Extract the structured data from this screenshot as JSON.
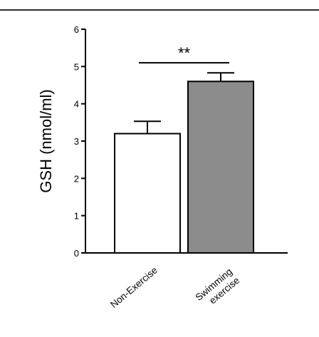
{
  "chart_data": {
    "type": "bar",
    "title": "",
    "xlabel": "",
    "ylabel": "GSH (nmol/ml)",
    "ylim": [
      0,
      6
    ],
    "yticks": [
      0,
      1,
      2,
      3,
      4,
      5,
      6
    ],
    "grid": false,
    "categories": [
      {
        "lines": [
          "Non-Exercise"
        ]
      },
      {
        "lines": [
          "Swimming",
          "exercise"
        ]
      }
    ],
    "values": [
      3.2,
      4.6
    ],
    "errors": [
      0.33,
      0.23
    ],
    "colors": [
      "#ffffff",
      "#8c8c8c"
    ],
    "significance": {
      "label": "**",
      "from": 0,
      "to": 1,
      "y": 5.1
    }
  }
}
